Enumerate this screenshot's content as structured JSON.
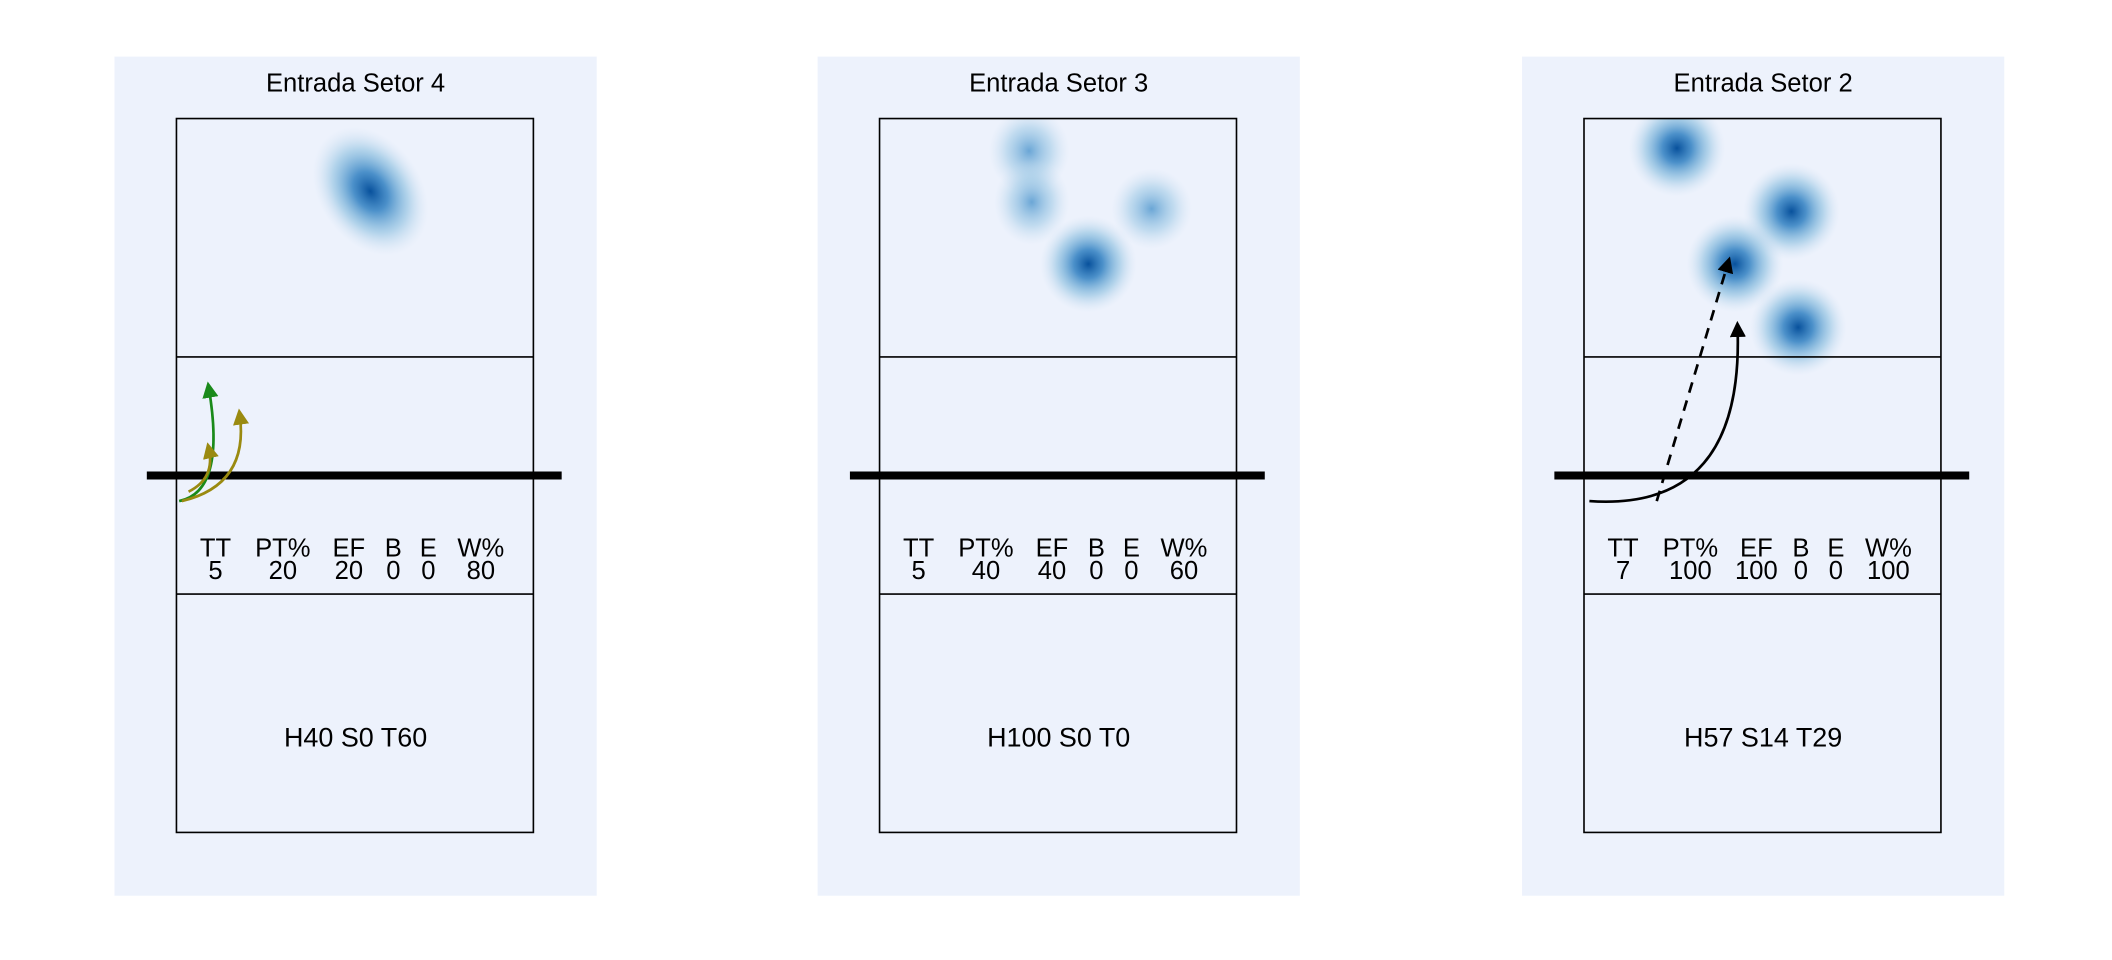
{
  "panels": [
    {
      "title": "Entrada Setor 4",
      "stats": {
        "headers": [
          "TT",
          "PT%",
          "EF",
          "B",
          "E",
          "W%"
        ],
        "values": [
          "5",
          "20",
          "20",
          "0",
          "0",
          "80"
        ]
      },
      "summary": "H40 S0 T60"
    },
    {
      "title": "Entrada Setor 3",
      "stats": {
        "headers": [
          "TT",
          "PT%",
          "EF",
          "B",
          "E",
          "W%"
        ],
        "values": [
          "5",
          "40",
          "40",
          "0",
          "0",
          "60"
        ]
      },
      "summary": "H100 S0 T0"
    },
    {
      "title": "Entrada Setor 2",
      "stats": {
        "headers": [
          "TT",
          "PT%",
          "EF",
          "B",
          "E",
          "W%"
        ],
        "values": [
          "7",
          "100",
          "100",
          "0",
          "0",
          "100"
        ]
      },
      "summary": "H57 S14 T29"
    }
  ]
}
